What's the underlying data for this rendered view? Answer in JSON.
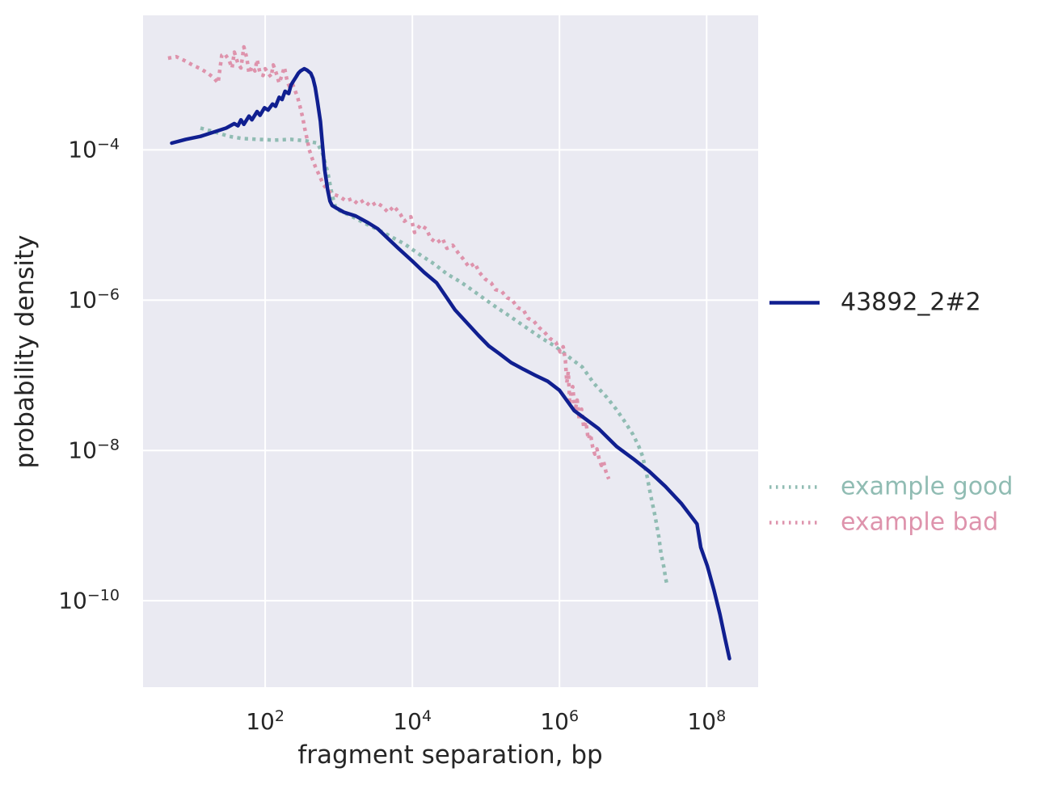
{
  "figure": {
    "background": "#ffffff",
    "plot_background": "#eaeaf2",
    "grid_color": "#ffffff",
    "text_color": "#262626",
    "tick_base": "10"
  },
  "chart_data": {
    "type": "line",
    "title": "",
    "xlabel": "fragment separation, bp",
    "ylabel": "probability density",
    "x_scale": "log",
    "y_scale": "log",
    "grid": true,
    "legend_position": "right-outside",
    "coords_note": "series points are [log10(fragment separation bp), log10(probability density)]",
    "xlim_log10": [
      0.34,
      8.7
    ],
    "ylim_log10": [
      -11.15,
      -2.21
    ],
    "x_tick_exponents": [
      2,
      4,
      6,
      8
    ],
    "y_tick_exponents": [
      -4,
      -6,
      -8,
      -10
    ],
    "series": [
      {
        "name": "43892_2#2",
        "color": "#101f90",
        "style": "solid",
        "points_log10": [
          [
            0.73,
            -3.91
          ],
          [
            0.92,
            -3.86
          ],
          [
            1.12,
            -3.82
          ],
          [
            1.31,
            -3.76
          ],
          [
            1.47,
            -3.71
          ],
          [
            1.58,
            -3.65
          ],
          [
            1.63,
            -3.68
          ],
          [
            1.67,
            -3.6
          ],
          [
            1.71,
            -3.66
          ],
          [
            1.78,
            -3.55
          ],
          [
            1.82,
            -3.6
          ],
          [
            1.89,
            -3.49
          ],
          [
            1.93,
            -3.54
          ],
          [
            1.99,
            -3.44
          ],
          [
            2.04,
            -3.47
          ],
          [
            2.1,
            -3.39
          ],
          [
            2.14,
            -3.42
          ],
          [
            2.19,
            -3.3
          ],
          [
            2.23,
            -3.33
          ],
          [
            2.27,
            -3.22
          ],
          [
            2.32,
            -3.25
          ],
          [
            2.35,
            -3.14
          ],
          [
            2.38,
            -3.09
          ],
          [
            2.42,
            -3.03
          ],
          [
            2.45,
            -2.98
          ],
          [
            2.48,
            -2.95
          ],
          [
            2.53,
            -2.92
          ],
          [
            2.57,
            -2.94
          ],
          [
            2.62,
            -2.98
          ],
          [
            2.65,
            -3.05
          ],
          [
            2.68,
            -3.17
          ],
          [
            2.71,
            -3.35
          ],
          [
            2.75,
            -3.62
          ],
          [
            2.78,
            -3.95
          ],
          [
            2.81,
            -4.27
          ],
          [
            2.85,
            -4.54
          ],
          [
            2.88,
            -4.68
          ],
          [
            2.91,
            -4.74
          ],
          [
            2.96,
            -4.77
          ],
          [
            3.07,
            -4.83
          ],
          [
            3.23,
            -4.88
          ],
          [
            3.4,
            -4.97
          ],
          [
            3.53,
            -5.05
          ],
          [
            3.67,
            -5.18
          ],
          [
            3.81,
            -5.31
          ],
          [
            4.0,
            -5.48
          ],
          [
            4.16,
            -5.63
          ],
          [
            4.33,
            -5.77
          ],
          [
            4.47,
            -5.97
          ],
          [
            4.58,
            -6.13
          ],
          [
            4.75,
            -6.31
          ],
          [
            4.9,
            -6.47
          ],
          [
            5.04,
            -6.61
          ],
          [
            5.18,
            -6.71
          ],
          [
            5.34,
            -6.83
          ],
          [
            5.51,
            -6.92
          ],
          [
            5.67,
            -7.0
          ],
          [
            5.84,
            -7.08
          ],
          [
            6.0,
            -7.2
          ],
          [
            6.2,
            -7.47
          ],
          [
            6.53,
            -7.71
          ],
          [
            6.78,
            -7.95
          ],
          [
            7.0,
            -8.11
          ],
          [
            7.22,
            -8.28
          ],
          [
            7.44,
            -8.48
          ],
          [
            7.66,
            -8.71
          ],
          [
            7.87,
            -8.98
          ],
          [
            7.92,
            -9.29
          ],
          [
            8.01,
            -9.54
          ],
          [
            8.1,
            -9.86
          ],
          [
            8.18,
            -10.18
          ],
          [
            8.25,
            -10.5
          ],
          [
            8.31,
            -10.77
          ]
        ]
      },
      {
        "name": "example good",
        "color": "#90bcb3",
        "style": "dotted",
        "points_log10": [
          [
            1.12,
            -3.71
          ],
          [
            1.31,
            -3.76
          ],
          [
            1.51,
            -3.82
          ],
          [
            1.69,
            -3.85
          ],
          [
            1.91,
            -3.86
          ],
          [
            2.13,
            -3.87
          ],
          [
            2.35,
            -3.86
          ],
          [
            2.55,
            -3.88
          ],
          [
            2.71,
            -3.91
          ],
          [
            2.78,
            -4.05
          ],
          [
            2.85,
            -4.3
          ],
          [
            2.91,
            -4.6
          ],
          [
            2.96,
            -4.78
          ],
          [
            3.05,
            -4.83
          ],
          [
            3.15,
            -4.87
          ],
          [
            3.34,
            -4.97
          ],
          [
            3.53,
            -5.06
          ],
          [
            3.7,
            -5.15
          ],
          [
            3.89,
            -5.25
          ],
          [
            4.11,
            -5.4
          ],
          [
            4.3,
            -5.52
          ],
          [
            4.47,
            -5.65
          ],
          [
            4.66,
            -5.76
          ],
          [
            4.82,
            -5.87
          ],
          [
            4.99,
            -5.99
          ],
          [
            5.15,
            -6.1
          ],
          [
            5.32,
            -6.21
          ],
          [
            5.48,
            -6.32
          ],
          [
            5.63,
            -6.42
          ],
          [
            5.78,
            -6.52
          ],
          [
            5.92,
            -6.6
          ],
          [
            6.03,
            -6.68
          ],
          [
            6.17,
            -6.79
          ],
          [
            6.31,
            -6.89
          ],
          [
            6.47,
            -7.11
          ],
          [
            6.64,
            -7.29
          ],
          [
            6.77,
            -7.45
          ],
          [
            6.89,
            -7.62
          ],
          [
            7.0,
            -7.79
          ],
          [
            7.08,
            -7.95
          ],
          [
            7.13,
            -8.08
          ],
          [
            7.19,
            -8.34
          ],
          [
            7.24,
            -8.6
          ],
          [
            7.3,
            -8.88
          ],
          [
            7.35,
            -9.15
          ],
          [
            7.38,
            -9.37
          ],
          [
            7.42,
            -9.56
          ],
          [
            7.44,
            -9.69
          ],
          [
            7.46,
            -9.78
          ]
        ]
      },
      {
        "name": "example bad",
        "color": "#de93ac",
        "style": "dotted",
        "points_log10": [
          [
            0.68,
            -2.78
          ],
          [
            0.79,
            -2.76
          ],
          [
            0.9,
            -2.81
          ],
          [
            1.01,
            -2.87
          ],
          [
            1.12,
            -2.92
          ],
          [
            1.22,
            -2.98
          ],
          [
            1.3,
            -3.04
          ],
          [
            1.36,
            -3.11
          ],
          [
            1.41,
            -2.74
          ],
          [
            1.45,
            -2.72
          ],
          [
            1.51,
            -2.81
          ],
          [
            1.55,
            -2.91
          ],
          [
            1.58,
            -2.7
          ],
          [
            1.63,
            -2.85
          ],
          [
            1.67,
            -2.91
          ],
          [
            1.71,
            -2.63
          ],
          [
            1.75,
            -2.78
          ],
          [
            1.78,
            -2.98
          ],
          [
            1.82,
            -2.89
          ],
          [
            1.86,
            -2.95
          ],
          [
            1.89,
            -2.8
          ],
          [
            1.93,
            -2.98
          ],
          [
            1.97,
            -3.01
          ],
          [
            2.0,
            -2.92
          ],
          [
            2.04,
            -2.98
          ],
          [
            2.08,
            -3.03
          ],
          [
            2.11,
            -2.87
          ],
          [
            2.15,
            -2.98
          ],
          [
            2.19,
            -3.11
          ],
          [
            2.22,
            -3.03
          ],
          [
            2.26,
            -2.9
          ],
          [
            2.3,
            -3.09
          ],
          [
            2.33,
            -3.16
          ],
          [
            2.37,
            -3.12
          ],
          [
            2.41,
            -3.22
          ],
          [
            2.44,
            -3.3
          ],
          [
            2.47,
            -3.41
          ],
          [
            2.51,
            -3.57
          ],
          [
            2.54,
            -3.73
          ],
          [
            2.57,
            -3.86
          ],
          [
            2.6,
            -4.0
          ],
          [
            2.64,
            -4.12
          ],
          [
            2.68,
            -4.22
          ],
          [
            2.74,
            -4.35
          ],
          [
            2.79,
            -4.46
          ],
          [
            2.85,
            -4.54
          ],
          [
            2.92,
            -4.59
          ],
          [
            3.01,
            -4.62
          ],
          [
            3.1,
            -4.68
          ],
          [
            3.18,
            -4.65
          ],
          [
            3.26,
            -4.72
          ],
          [
            3.34,
            -4.67
          ],
          [
            3.43,
            -4.75
          ],
          [
            3.51,
            -4.7
          ],
          [
            3.59,
            -4.75
          ],
          [
            3.67,
            -4.83
          ],
          [
            3.75,
            -4.75
          ],
          [
            3.84,
            -4.86
          ],
          [
            3.89,
            -4.95
          ],
          [
            3.98,
            -4.89
          ],
          [
            4.03,
            -5.1
          ],
          [
            4.11,
            -5.0
          ],
          [
            4.19,
            -5.05
          ],
          [
            4.25,
            -5.18
          ],
          [
            4.33,
            -5.24
          ],
          [
            4.41,
            -5.18
          ],
          [
            4.47,
            -5.31
          ],
          [
            4.55,
            -5.27
          ],
          [
            4.63,
            -5.38
          ],
          [
            4.69,
            -5.45
          ],
          [
            4.77,
            -5.56
          ],
          [
            4.85,
            -5.51
          ],
          [
            4.91,
            -5.63
          ],
          [
            4.99,
            -5.72
          ],
          [
            5.07,
            -5.77
          ],
          [
            5.13,
            -5.86
          ],
          [
            5.21,
            -5.88
          ],
          [
            5.29,
            -5.97
          ],
          [
            5.35,
            -5.99
          ],
          [
            5.43,
            -6.1
          ],
          [
            5.51,
            -6.13
          ],
          [
            5.57,
            -6.24
          ],
          [
            5.65,
            -6.28
          ],
          [
            5.73,
            -6.37
          ],
          [
            5.79,
            -6.42
          ],
          [
            5.87,
            -6.51
          ],
          [
            5.95,
            -6.56
          ],
          [
            6.01,
            -6.69
          ],
          [
            6.05,
            -6.62
          ],
          [
            6.08,
            -6.8
          ],
          [
            6.1,
            -7.1
          ],
          [
            6.12,
            -6.95
          ],
          [
            6.14,
            -7.39
          ],
          [
            6.16,
            -7.2
          ],
          [
            6.18,
            -7.15
          ],
          [
            6.21,
            -7.48
          ],
          [
            6.24,
            -7.33
          ],
          [
            6.27,
            -7.6
          ],
          [
            6.3,
            -7.45
          ],
          [
            6.33,
            -7.7
          ],
          [
            6.36,
            -7.62
          ],
          [
            6.39,
            -7.85
          ],
          [
            6.42,
            -7.78
          ],
          [
            6.45,
            -7.95
          ],
          [
            6.48,
            -8.05
          ],
          [
            6.51,
            -7.98
          ],
          [
            6.54,
            -8.12
          ],
          [
            6.57,
            -8.2
          ],
          [
            6.6,
            -8.15
          ],
          [
            6.63,
            -8.28
          ],
          [
            6.65,
            -8.33
          ],
          [
            6.67,
            -8.38
          ]
        ]
      }
    ]
  }
}
